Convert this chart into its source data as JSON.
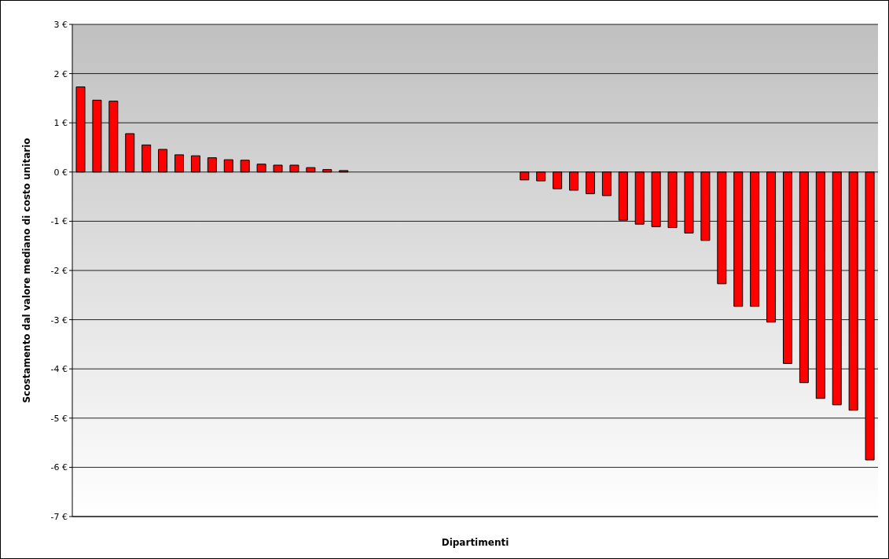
{
  "chart_data": {
    "type": "bar",
    "xlabel": "Dipartimenti",
    "ylabel": "Scostamento dal valore mediano di costo unitario",
    "categories": [
      null,
      null,
      null,
      null,
      null,
      null,
      null,
      null,
      null,
      null,
      null,
      null,
      null,
      null,
      null,
      null,
      null,
      null,
      null,
      null,
      null,
      null,
      null,
      null,
      null,
      null,
      null,
      null,
      null,
      null,
      null,
      null,
      null,
      null,
      null,
      null,
      null,
      null,
      null,
      null,
      null,
      null,
      null,
      null,
      null,
      null,
      null,
      null,
      null
    ],
    "values": [
      1.73,
      1.46,
      1.44,
      0.78,
      0.55,
      0.46,
      0.35,
      0.33,
      0.29,
      0.25,
      0.24,
      0.16,
      0.14,
      0.14,
      0.09,
      0.05,
      0.03,
      null,
      null,
      null,
      null,
      null,
      null,
      null,
      null,
      null,
      null,
      -0.16,
      -0.18,
      -0.34,
      -0.37,
      -0.44,
      -0.48,
      -0.98,
      -1.06,
      -1.11,
      -1.13,
      -1.24,
      -1.39,
      -2.27,
      -2.73,
      -2.73,
      -3.05,
      -3.89,
      -4.28,
      -4.6,
      -4.73,
      -4.84,
      -5.85
    ],
    "color": "#ff0000",
    "ylim": [
      -7,
      3
    ],
    "yticks": [
      {
        "value": -7,
        "label": "-7 €"
      },
      {
        "value": -6,
        "label": "-6 €"
      },
      {
        "value": -5,
        "label": "-5 €"
      },
      {
        "value": -4,
        "label": "-4 €"
      },
      {
        "value": -3,
        "label": "-3 €"
      },
      {
        "value": -2,
        "label": "-2 €"
      },
      {
        "value": -1,
        "label": "-1 €"
      },
      {
        "value": 0,
        "label": "0 €"
      },
      {
        "value": 1,
        "label": "1 €"
      },
      {
        "value": 2,
        "label": "2 €"
      },
      {
        "value": 3,
        "label": "3 €"
      }
    ],
    "grid": "y",
    "legend": false
  }
}
